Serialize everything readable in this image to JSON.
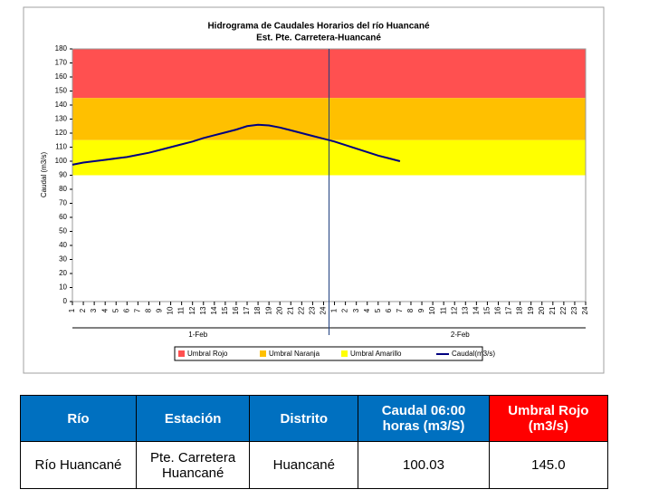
{
  "chart_data": {
    "type": "line",
    "title": "Hidrograma de Caudales Horarios del río Huancané",
    "subtitle": "Est. Pte. Carretera-Huancané",
    "ylabel": "Caudal   (m3/s)",
    "categories": [
      "1",
      "2",
      "3",
      "4",
      "5",
      "6",
      "7",
      "8",
      "9",
      "10",
      "11",
      "12",
      "13",
      "14",
      "15",
      "16",
      "17",
      "18",
      "19",
      "20",
      "21",
      "22",
      "23",
      "24",
      "1",
      "2",
      "3",
      "4",
      "5",
      "6",
      "7",
      "8",
      "9",
      "10",
      "11",
      "12",
      "13",
      "14",
      "15",
      "16",
      "17",
      "18",
      "19",
      "20",
      "21",
      "22",
      "23",
      "24"
    ],
    "x_groups": [
      "1-Feb",
      "2-Feb"
    ],
    "ylim": [
      0,
      180
    ],
    "yticks": [
      0,
      10,
      20,
      30,
      40,
      50,
      60,
      70,
      80,
      90,
      100,
      110,
      120,
      130,
      140,
      150,
      160,
      170,
      180
    ],
    "grid": false,
    "bands": [
      {
        "name": "Umbral Rojo",
        "color": "#ff5050",
        "from": 145,
        "to": 180
      },
      {
        "name": "Umbral Naranja",
        "color": "#ffc000",
        "from": 115,
        "to": 145
      },
      {
        "name": "Umbral Amarillo",
        "color": "#ffff00",
        "from": 90,
        "to": 115
      }
    ],
    "series": [
      {
        "name": "Caudal(m3/s)",
        "color": "#000080",
        "values": [
          97.5,
          99,
          100,
          101,
          102,
          103,
          104.5,
          106,
          108,
          110,
          112,
          114,
          116.5,
          118.5,
          120.5,
          122.5,
          125,
          126,
          125.5,
          124,
          122,
          120,
          118,
          116,
          114,
          111.5,
          109,
          106.5,
          104,
          102,
          100,
          null,
          null,
          null,
          null,
          null,
          null,
          null,
          null,
          null,
          null,
          null,
          null,
          null,
          null,
          null,
          null,
          null
        ]
      }
    ],
    "legend": "bottom"
  },
  "table": {
    "headers": [
      "Río",
      "Estación",
      "Distrito",
      "Caudal  06:00 horas (m3/S)",
      "Umbral Rojo (m3/s)"
    ],
    "rows": [
      [
        "Río Huancané",
        "Pte. Carretera Huancané",
        "Huancané",
        "100.03",
        "145.0"
      ]
    ]
  }
}
